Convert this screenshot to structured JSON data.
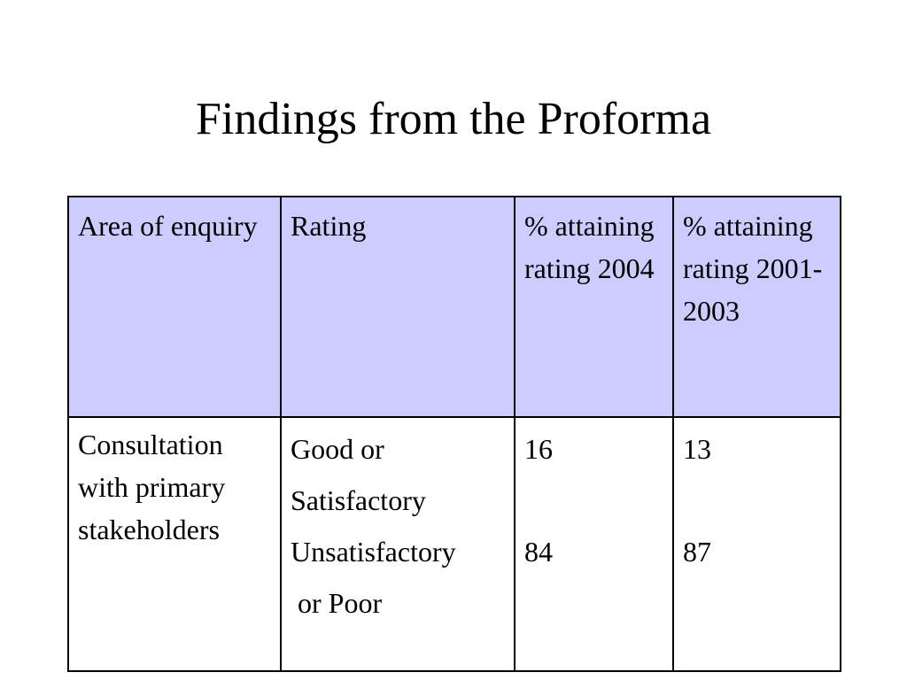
{
  "slide": {
    "title": "Findings from the Proforma"
  },
  "table": {
    "headers": [
      "Area of enquiry",
      "Rating",
      "% attaining rating 2004",
      "% attaining rating 2001-2003"
    ],
    "rows": [
      {
        "area": "Consultation with primary stakeholders",
        "ratings": [
          "Good or",
          "Satisfactory",
          "Unsatisfactory",
          " or Poor"
        ],
        "values_2004": [
          "16",
          "84"
        ],
        "values_2001_2003": [
          "13",
          "87"
        ]
      }
    ]
  },
  "colors": {
    "header_background": "#ccccff",
    "border": "#000000",
    "text": "#000000"
  }
}
